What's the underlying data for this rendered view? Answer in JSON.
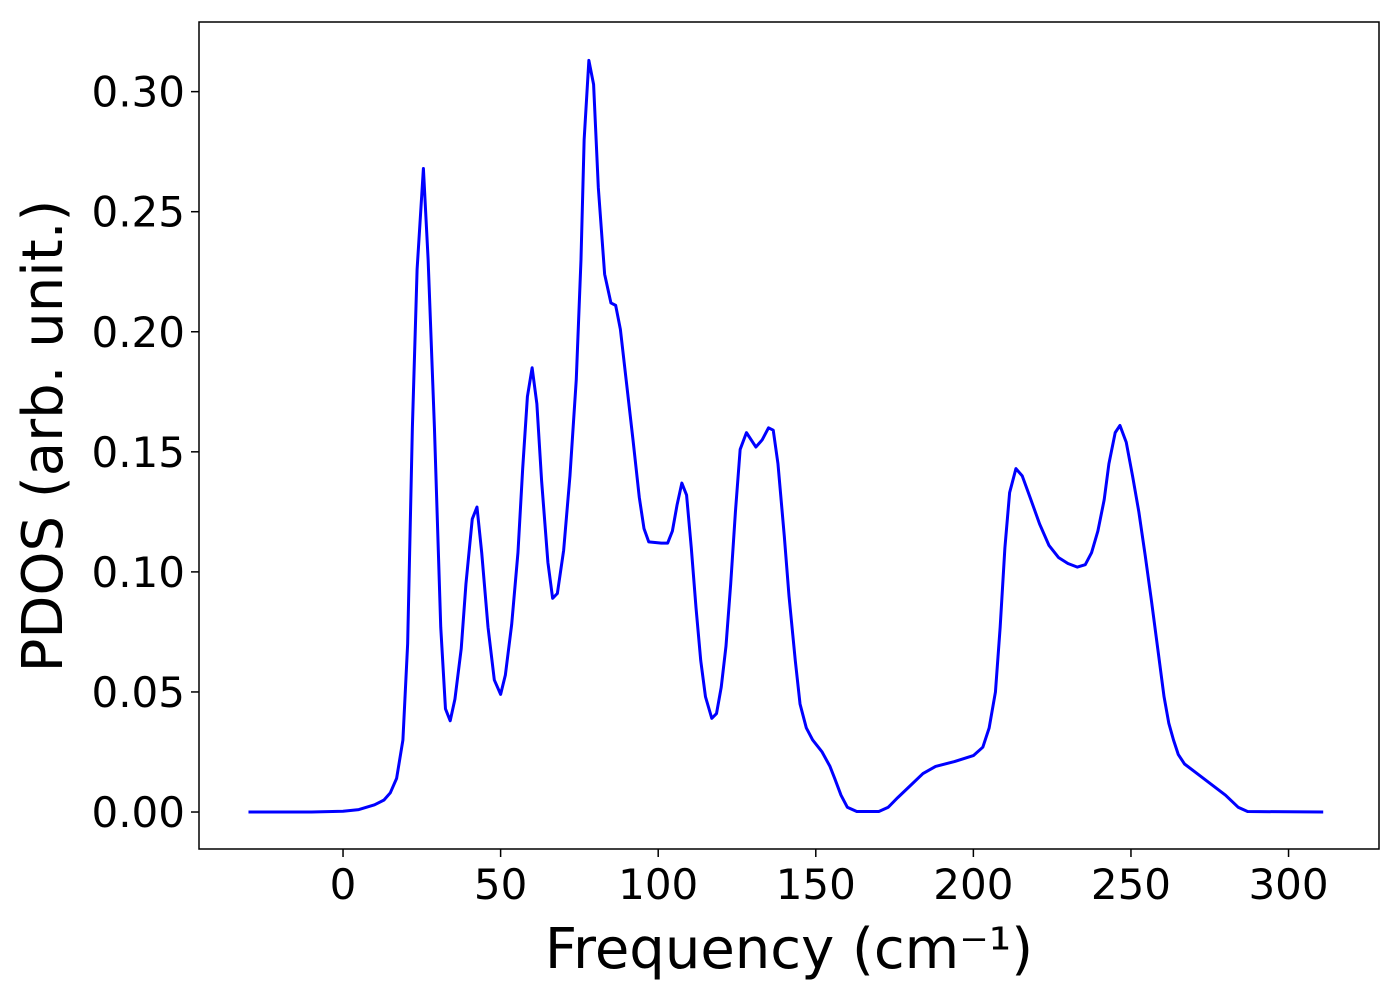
{
  "chart_data": {
    "type": "line",
    "xlabel": "Frequency (cm⁻¹)",
    "ylabel": "PDOS (arb. unit.)",
    "xlim": [
      -45.7,
      328.7
    ],
    "ylim": [
      -0.0154,
      0.329
    ],
    "xticks": [
      0,
      50,
      100,
      150,
      200,
      250,
      300
    ],
    "yticks": [
      {
        "value": 0,
        "label": "0.00"
      },
      {
        "value": 0.05,
        "label": "0.05"
      },
      {
        "value": 0.1,
        "label": "0.10"
      },
      {
        "value": 0.15,
        "label": "0.15"
      },
      {
        "value": 0.2,
        "label": "0.20"
      },
      {
        "value": 0.25,
        "label": "0.25"
      },
      {
        "value": 0.3,
        "label": "0.30"
      }
    ],
    "grid": false,
    "series": [
      {
        "color": "#0000ff",
        "x": [
          -30,
          -10,
          0,
          5,
          10,
          13,
          15,
          17,
          19,
          20.5,
          22,
          23.5,
          25.5,
          27,
          29,
          31,
          32.5,
          34,
          35.5,
          37.5,
          39,
          41,
          42.5,
          44,
          46,
          48,
          50,
          51.5,
          53.5,
          55.5,
          57,
          58.5,
          60,
          61.5,
          63,
          65,
          66.5,
          68,
          70,
          72,
          74,
          75.5,
          76.5,
          78,
          79.5,
          81,
          83,
          85,
          86.5,
          88,
          90,
          92,
          94,
          95.5,
          97,
          101,
          103,
          104.5,
          106,
          107.5,
          109,
          110.5,
          112,
          113.5,
          115,
          117,
          118.5,
          120,
          121.5,
          123,
          124.5,
          126,
          128,
          131,
          133,
          135,
          136.5,
          138,
          140,
          141.5,
          143.5,
          145,
          147,
          149,
          152,
          154.5,
          156,
          158,
          160,
          163,
          170,
          173,
          176,
          180,
          184,
          188,
          194,
          200,
          203,
          205,
          207,
          208.5,
          210,
          211.5,
          213.5,
          215.5,
          218,
          221,
          224,
          227,
          230,
          233,
          235.5,
          237.5,
          239.5,
          241.5,
          243,
          245,
          246.5,
          248.5,
          250.5,
          252.5,
          254.5,
          256.5,
          258.5,
          260.5,
          262,
          263.5,
          265,
          267,
          270,
          275,
          280,
          284,
          287,
          311
        ],
        "values": [
          0,
          0,
          0.0003,
          0.001,
          0.003,
          0.005,
          0.008,
          0.014,
          0.03,
          0.07,
          0.16,
          0.226,
          0.268,
          0.23,
          0.16,
          0.077,
          0.043,
          0.038,
          0.047,
          0.068,
          0.095,
          0.122,
          0.127,
          0.108,
          0.077,
          0.055,
          0.049,
          0.057,
          0.078,
          0.108,
          0.143,
          0.173,
          0.185,
          0.17,
          0.138,
          0.104,
          0.089,
          0.091,
          0.109,
          0.14,
          0.18,
          0.23,
          0.28,
          0.313,
          0.303,
          0.26,
          0.224,
          0.212,
          0.211,
          0.201,
          0.178,
          0.155,
          0.131,
          0.118,
          0.1125,
          0.112,
          0.112,
          0.117,
          0.128,
          0.137,
          0.132,
          0.11,
          0.085,
          0.063,
          0.048,
          0.039,
          0.041,
          0.052,
          0.069,
          0.095,
          0.125,
          0.151,
          0.158,
          0.152,
          0.155,
          0.16,
          0.159,
          0.145,
          0.115,
          0.09,
          0.063,
          0.045,
          0.035,
          0.03,
          0.025,
          0.019,
          0.014,
          0.007,
          0.002,
          0.0002,
          0.0002,
          0.002,
          0.006,
          0.011,
          0.016,
          0.019,
          0.021,
          0.0235,
          0.027,
          0.035,
          0.05,
          0.077,
          0.11,
          0.133,
          0.143,
          0.14,
          0.131,
          0.12,
          0.111,
          0.106,
          0.1035,
          0.102,
          0.103,
          0.108,
          0.117,
          0.13,
          0.145,
          0.158,
          0.161,
          0.154,
          0.14,
          0.125,
          0.107,
          0.088,
          0.068,
          0.048,
          0.037,
          0.03,
          0.024,
          0.02,
          0.017,
          0.012,
          0.007,
          0.002,
          0.0002,
          0
        ]
      }
    ]
  }
}
